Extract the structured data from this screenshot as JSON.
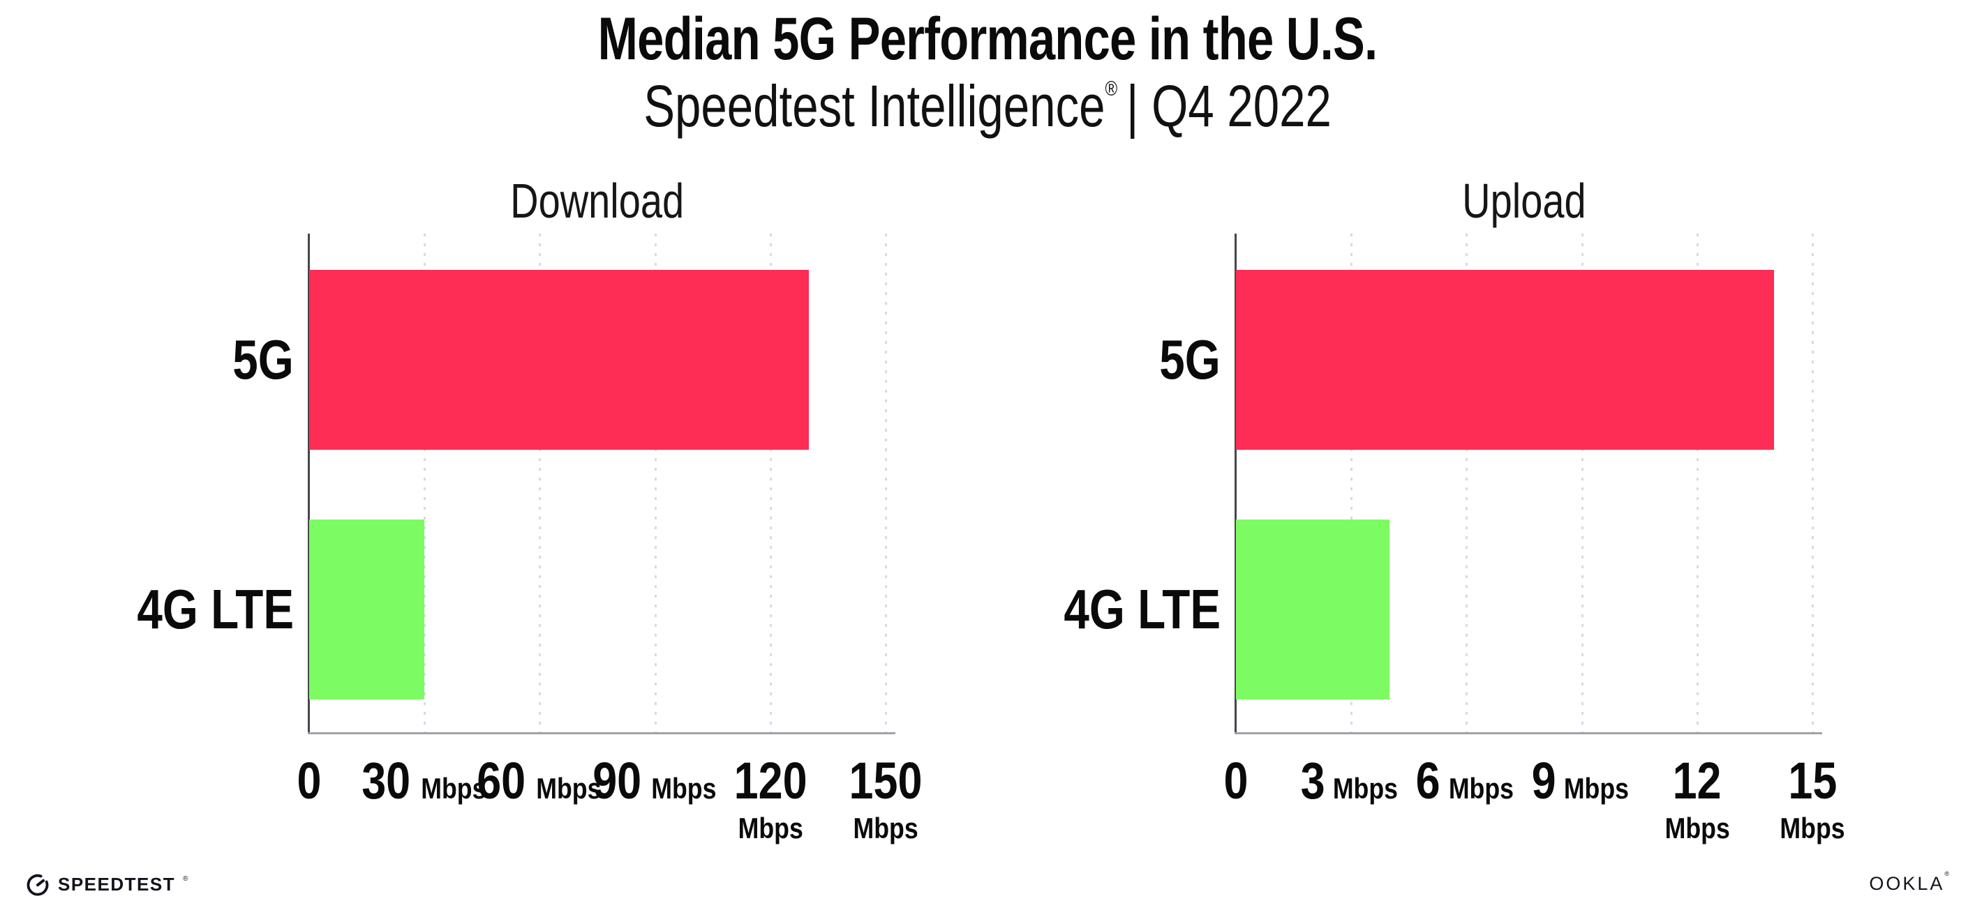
{
  "header": {
    "title": "Median 5G Performance in the U.S.",
    "subtitle_product": "Speedtest Intelligence",
    "registered_mark": "®",
    "subtitle_period": "| Q4 2022"
  },
  "chart_data": [
    {
      "type": "bar",
      "orientation": "horizontal",
      "title": "Download",
      "categories": [
        "5G",
        "4G LTE"
      ],
      "values": [
        130,
        30
      ],
      "unit": "Mbps",
      "xlim": [
        0,
        150
      ],
      "xticks": [
        0,
        30,
        60,
        90,
        120,
        150
      ],
      "bar_colors": [
        "#FD2D55",
        "#7DFB63"
      ],
      "grid": "dotted-vertical",
      "legend": "none"
    },
    {
      "type": "bar",
      "orientation": "horizontal",
      "title": "Upload",
      "categories": [
        "5G",
        "4G LTE"
      ],
      "values": [
        14,
        4
      ],
      "unit": "Mbps",
      "xlim": [
        0,
        15
      ],
      "xticks": [
        0,
        3,
        6,
        9,
        12,
        15
      ],
      "bar_colors": [
        "#FD2D55",
        "#7DFB63"
      ],
      "grid": "dotted-vertical",
      "legend": "none"
    }
  ],
  "footer": {
    "speedtest_label": "SPEEDTEST",
    "speedtest_mark": "®",
    "ookla_label": "OOKLA",
    "ookla_mark": "®"
  }
}
